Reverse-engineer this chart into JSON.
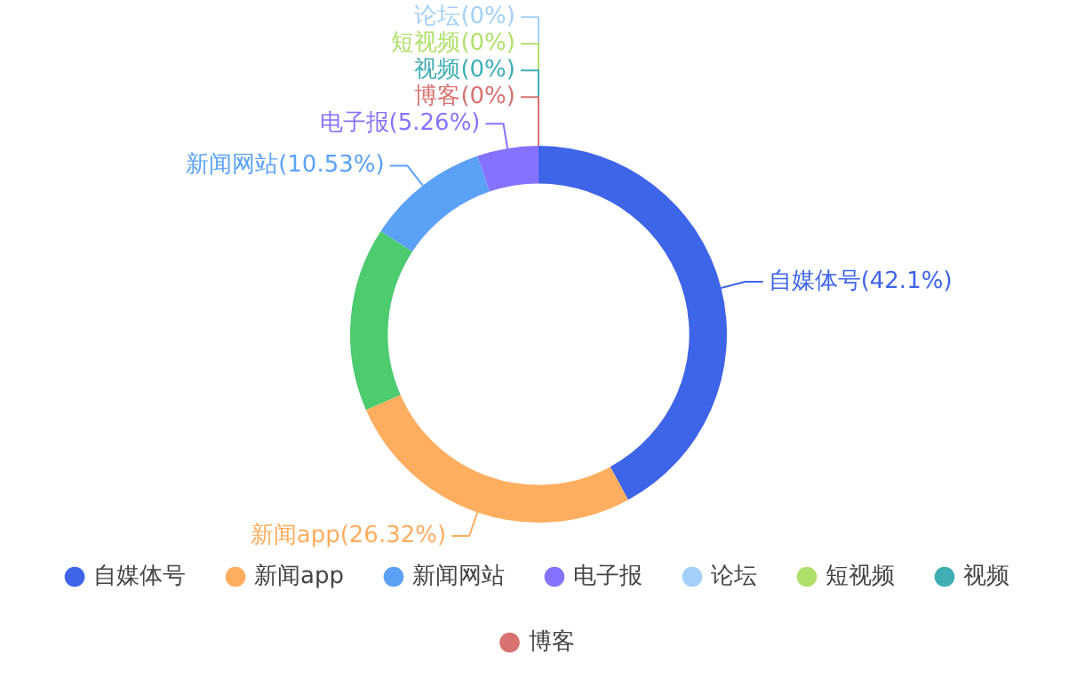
{
  "chart_data": {
    "type": "donut",
    "categories": [
      "自媒体号",
      "新闻app",
      null,
      "新闻网站",
      "电子报",
      null,
      "论坛",
      "短视频",
      "视频",
      "博客"
    ],
    "values": [
      42.1,
      26.32,
      15.79,
      10.53,
      5.26,
      0,
      0,
      0,
      0,
      0
    ],
    "colors": [
      "#3e64e8",
      "#ffad5e",
      "#4ccb6f",
      "#5ba2f7",
      "#8572ff",
      "#f7625d",
      "#a3d0f8",
      "#b0e06b",
      "#40aeb5",
      "#d87272"
    ],
    "value_labels": [
      "(42.1%)",
      "(26.32%)",
      null,
      "(10.53%)",
      "(5.26%)",
      null,
      "(0%)",
      "(0%)",
      "(0%)",
      "(0%)"
    ],
    "legend": "bottom"
  }
}
